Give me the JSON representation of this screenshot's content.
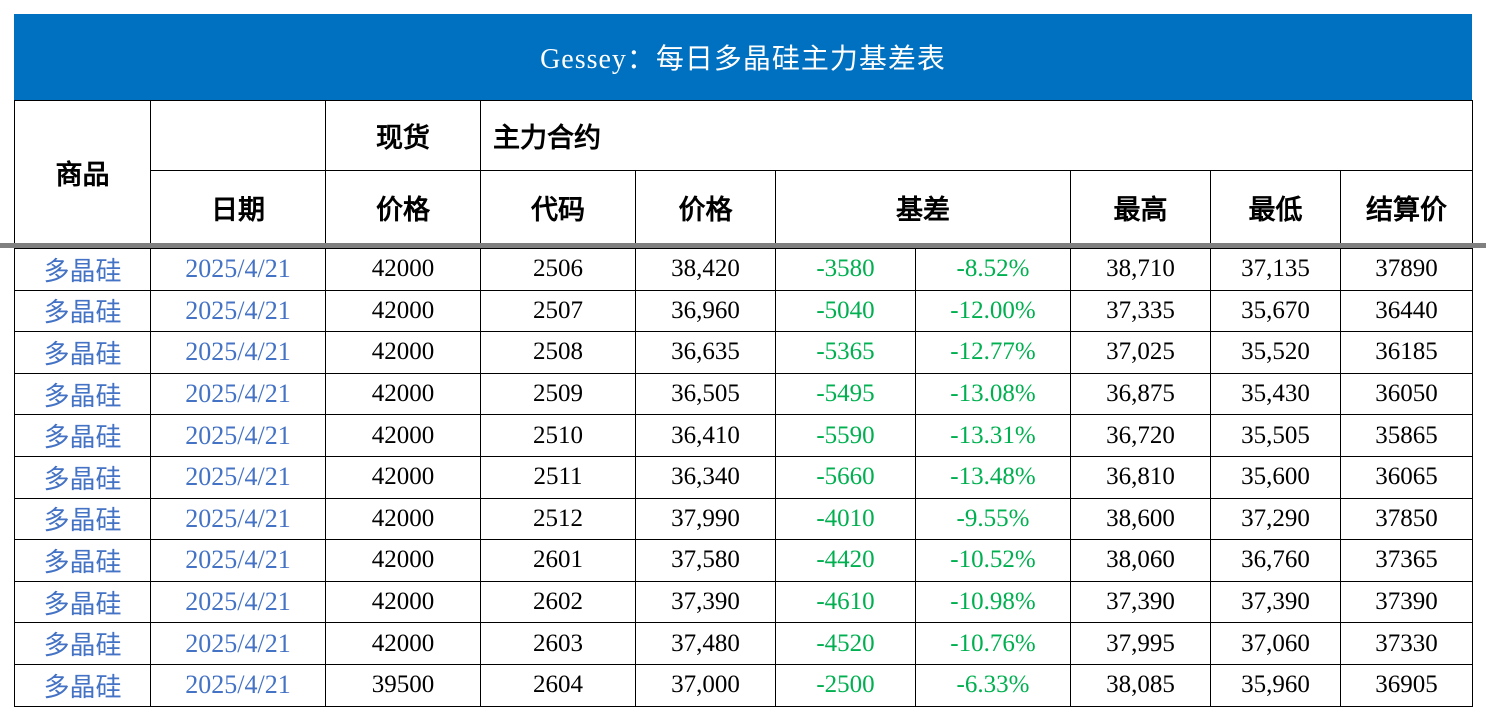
{
  "colors": {
    "banner_bg": "#0070C0",
    "banner_text": "#FFFFFF",
    "blue_text": "#4472C4",
    "green_text": "#00B050",
    "separator_gray": "#808080",
    "border": "#000000"
  },
  "chart_data": {
    "type": "table",
    "title": "Gessey：每日多晶硅主力基差表",
    "header": {
      "commodity": "商品",
      "date": "日期",
      "spot_group": "现货",
      "spot_price": "价格",
      "main_contract_group": "主力合约",
      "code": "代码",
      "price": "价格",
      "basis": "基差",
      "high": "最高",
      "low": "最低",
      "settle": "结算价"
    },
    "rows": [
      {
        "commodity": "多晶硅",
        "date": "2025/4/21",
        "spot_price": "42000",
        "code": "2506",
        "price": "38,420",
        "basis": "-3580",
        "basis_pct": "-8.52%",
        "high": "38,710",
        "low": "37,135",
        "settle": "37890"
      },
      {
        "commodity": "多晶硅",
        "date": "2025/4/21",
        "spot_price": "42000",
        "code": "2507",
        "price": "36,960",
        "basis": "-5040",
        "basis_pct": "-12.00%",
        "high": "37,335",
        "low": "35,670",
        "settle": "36440"
      },
      {
        "commodity": "多晶硅",
        "date": "2025/4/21",
        "spot_price": "42000",
        "code": "2508",
        "price": "36,635",
        "basis": "-5365",
        "basis_pct": "-12.77%",
        "high": "37,025",
        "low": "35,520",
        "settle": "36185"
      },
      {
        "commodity": "多晶硅",
        "date": "2025/4/21",
        "spot_price": "42000",
        "code": "2509",
        "price": "36,505",
        "basis": "-5495",
        "basis_pct": "-13.08%",
        "high": "36,875",
        "low": "35,430",
        "settle": "36050"
      },
      {
        "commodity": "多晶硅",
        "date": "2025/4/21",
        "spot_price": "42000",
        "code": "2510",
        "price": "36,410",
        "basis": "-5590",
        "basis_pct": "-13.31%",
        "high": "36,720",
        "low": "35,505",
        "settle": "35865"
      },
      {
        "commodity": "多晶硅",
        "date": "2025/4/21",
        "spot_price": "42000",
        "code": "2511",
        "price": "36,340",
        "basis": "-5660",
        "basis_pct": "-13.48%",
        "high": "36,810",
        "low": "35,600",
        "settle": "36065"
      },
      {
        "commodity": "多晶硅",
        "date": "2025/4/21",
        "spot_price": "42000",
        "code": "2512",
        "price": "37,990",
        "basis": "-4010",
        "basis_pct": "-9.55%",
        "high": "38,600",
        "low": "37,290",
        "settle": "37850"
      },
      {
        "commodity": "多晶硅",
        "date": "2025/4/21",
        "spot_price": "42000",
        "code": "2601",
        "price": "37,580",
        "basis": "-4420",
        "basis_pct": "-10.52%",
        "high": "38,060",
        "low": "36,760",
        "settle": "37365"
      },
      {
        "commodity": "多晶硅",
        "date": "2025/4/21",
        "spot_price": "42000",
        "code": "2602",
        "price": "37,390",
        "basis": "-4610",
        "basis_pct": "-10.98%",
        "high": "37,390",
        "low": "37,390",
        "settle": "37390"
      },
      {
        "commodity": "多晶硅",
        "date": "2025/4/21",
        "spot_price": "42000",
        "code": "2603",
        "price": "37,480",
        "basis": "-4520",
        "basis_pct": "-10.76%",
        "high": "37,995",
        "low": "37,060",
        "settle": "37330"
      },
      {
        "commodity": "多晶硅",
        "date": "2025/4/21",
        "spot_price": "39500",
        "code": "2604",
        "price": "37,000",
        "basis": "-2500",
        "basis_pct": "-6.33%",
        "high": "38,085",
        "low": "35,960",
        "settle": "36905"
      }
    ]
  }
}
